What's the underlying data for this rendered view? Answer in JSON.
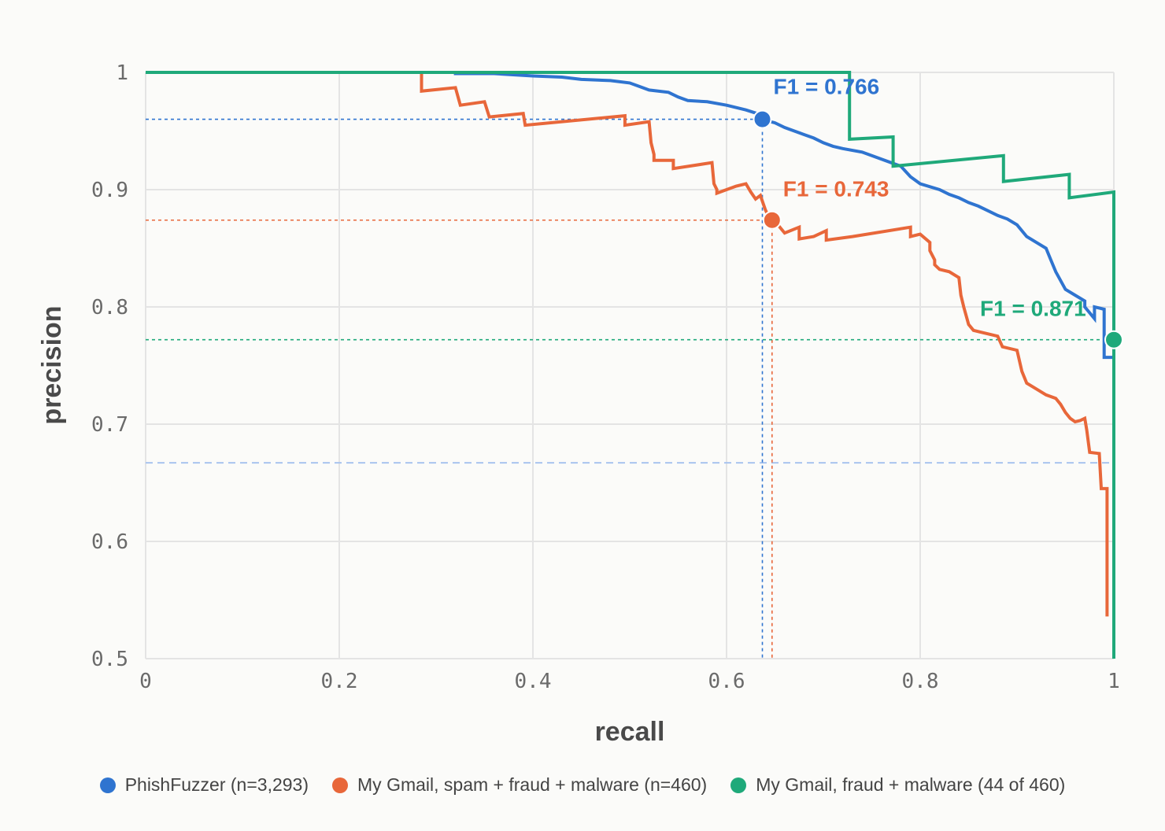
{
  "colors": {
    "series_0": "#2f74d0",
    "series_1": "#e8673a",
    "series_2": "#1fa97a",
    "grid": "#e4e4e4",
    "chance_line": "#a9c4ee"
  },
  "chart_data": {
    "type": "line",
    "xlabel": "recall",
    "ylabel": "precision",
    "xlim": [
      0,
      1
    ],
    "ylim": [
      0.5,
      1
    ],
    "xticks": [
      "0",
      "0.2",
      "0.4",
      "0.6",
      "0.8",
      "1"
    ],
    "yticks": [
      "0.5",
      "0.6",
      "0.7",
      "0.8",
      "0.9",
      "1"
    ],
    "grid": true,
    "legend_position": "bottom",
    "baseline_precision": 0.667,
    "series": [
      {
        "name": "PhishFuzzer (n=3,293)",
        "step": true,
        "points": [
          [
            0,
            1
          ],
          [
            0.32,
            1
          ],
          [
            0.32,
            0.999
          ],
          [
            0.36,
            0.999
          ],
          [
            0.4,
            0.997
          ],
          [
            0.43,
            0.996
          ],
          [
            0.45,
            0.994
          ],
          [
            0.48,
            0.993
          ],
          [
            0.5,
            0.991
          ],
          [
            0.51,
            0.988
          ],
          [
            0.52,
            0.985
          ],
          [
            0.54,
            0.983
          ],
          [
            0.55,
            0.979
          ],
          [
            0.56,
            0.976
          ],
          [
            0.58,
            0.975
          ],
          [
            0.6,
            0.972
          ],
          [
            0.62,
            0.968
          ],
          [
            0.635,
            0.964
          ],
          [
            0.636,
            0.96
          ],
          [
            0.65,
            0.957
          ],
          [
            0.66,
            0.953
          ],
          [
            0.67,
            0.95
          ],
          [
            0.68,
            0.947
          ],
          [
            0.69,
            0.944
          ],
          [
            0.7,
            0.94
          ],
          [
            0.71,
            0.937
          ],
          [
            0.72,
            0.935
          ],
          [
            0.74,
            0.932
          ],
          [
            0.75,
            0.929
          ],
          [
            0.76,
            0.926
          ],
          [
            0.78,
            0.92
          ],
          [
            0.79,
            0.911
          ],
          [
            0.8,
            0.905
          ],
          [
            0.82,
            0.9
          ],
          [
            0.83,
            0.896
          ],
          [
            0.84,
            0.893
          ],
          [
            0.85,
            0.889
          ],
          [
            0.86,
            0.886
          ],
          [
            0.87,
            0.882
          ],
          [
            0.88,
            0.878
          ],
          [
            0.89,
            0.875
          ],
          [
            0.9,
            0.87
          ],
          [
            0.91,
            0.86
          ],
          [
            0.92,
            0.855
          ],
          [
            0.93,
            0.85
          ],
          [
            0.935,
            0.84
          ],
          [
            0.94,
            0.83
          ],
          [
            0.95,
            0.815
          ],
          [
            0.96,
            0.81
          ],
          [
            0.97,
            0.805
          ],
          [
            0.97,
            0.8
          ],
          [
            0.98,
            0.79
          ],
          [
            0.98,
            0.8
          ],
          [
            0.99,
            0.798
          ],
          [
            0.99,
            0.757
          ],
          [
            1,
            0.757
          ]
        ]
      },
      {
        "name": "My Gmail, spam + fraud + malware (n=460)",
        "step": true,
        "points": [
          [
            0,
            1
          ],
          [
            0.285,
            1
          ],
          [
            0.285,
            0.984
          ],
          [
            0.32,
            0.987
          ],
          [
            0.325,
            0.972
          ],
          [
            0.35,
            0.975
          ],
          [
            0.355,
            0.962
          ],
          [
            0.39,
            0.965
          ],
          [
            0.392,
            0.955
          ],
          [
            0.495,
            0.963
          ],
          [
            0.495,
            0.955
          ],
          [
            0.52,
            0.958
          ],
          [
            0.522,
            0.94
          ],
          [
            0.525,
            0.93
          ],
          [
            0.525,
            0.925
          ],
          [
            0.545,
            0.925
          ],
          [
            0.545,
            0.918
          ],
          [
            0.585,
            0.923
          ],
          [
            0.587,
            0.905
          ],
          [
            0.59,
            0.9
          ],
          [
            0.59,
            0.897
          ],
          [
            0.6,
            0.9
          ],
          [
            0.61,
            0.903
          ],
          [
            0.62,
            0.905
          ],
          [
            0.625,
            0.898
          ],
          [
            0.63,
            0.892
          ],
          [
            0.635,
            0.895
          ],
          [
            0.64,
            0.883
          ],
          [
            0.645,
            0.874
          ],
          [
            0.65,
            0.873
          ],
          [
            0.66,
            0.863
          ],
          [
            0.675,
            0.868
          ],
          [
            0.675,
            0.858
          ],
          [
            0.69,
            0.86
          ],
          [
            0.703,
            0.865
          ],
          [
            0.703,
            0.857
          ],
          [
            0.73,
            0.86
          ],
          [
            0.79,
            0.868
          ],
          [
            0.79,
            0.86
          ],
          [
            0.8,
            0.862
          ],
          [
            0.81,
            0.855
          ],
          [
            0.81,
            0.848
          ],
          [
            0.815,
            0.84
          ],
          [
            0.815,
            0.836
          ],
          [
            0.82,
            0.832
          ],
          [
            0.83,
            0.83
          ],
          [
            0.84,
            0.825
          ],
          [
            0.842,
            0.81
          ],
          [
            0.845,
            0.8
          ],
          [
            0.85,
            0.785
          ],
          [
            0.855,
            0.78
          ],
          [
            0.865,
            0.778
          ],
          [
            0.88,
            0.775
          ],
          [
            0.885,
            0.766
          ],
          [
            0.9,
            0.763
          ],
          [
            0.905,
            0.745
          ],
          [
            0.91,
            0.735
          ],
          [
            0.92,
            0.73
          ],
          [
            0.93,
            0.725
          ],
          [
            0.94,
            0.722
          ],
          [
            0.945,
            0.717
          ],
          [
            0.95,
            0.71
          ],
          [
            0.955,
            0.705
          ],
          [
            0.96,
            0.702
          ],
          [
            0.965,
            0.703
          ],
          [
            0.97,
            0.705
          ],
          [
            0.972,
            0.695
          ],
          [
            0.975,
            0.676
          ],
          [
            0.985,
            0.675
          ],
          [
            0.987,
            0.645
          ],
          [
            0.993,
            0.645
          ],
          [
            0.993,
            0.536
          ]
        ]
      },
      {
        "name": "My Gmail, fraud + malware (44 of 460)",
        "step": true,
        "points": [
          [
            0,
            1
          ],
          [
            0.727,
            1
          ],
          [
            0.727,
            0.943
          ],
          [
            0.772,
            0.945
          ],
          [
            0.772,
            0.92
          ],
          [
            0.886,
            0.929
          ],
          [
            0.886,
            0.907
          ],
          [
            0.954,
            0.913
          ],
          [
            0.954,
            0.893
          ],
          [
            1,
            0.898
          ],
          [
            1,
            0.5
          ]
        ]
      }
    ],
    "f1_markers": [
      {
        "label": "F1 = 0.766",
        "series": 0,
        "recall": 0.637,
        "precision": 0.96
      },
      {
        "label": "F1 = 0.743",
        "series": 1,
        "recall": 0.647,
        "precision": 0.874
      },
      {
        "label": "F1 = 0.871",
        "series": 2,
        "recall": 1.0,
        "precision": 0.772
      }
    ]
  }
}
